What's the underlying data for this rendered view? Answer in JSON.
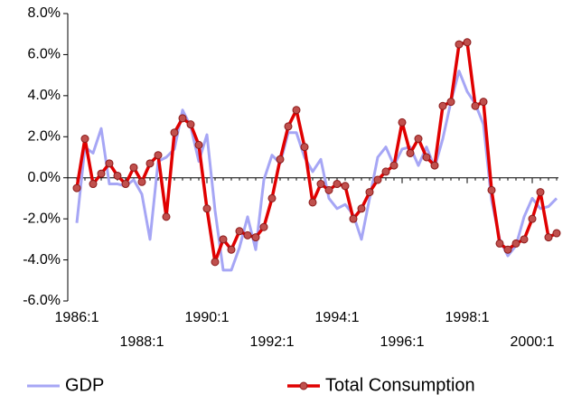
{
  "chart_data": {
    "type": "line",
    "categories": [
      "1986:1",
      null,
      null,
      null,
      null,
      null,
      null,
      null,
      "1988:1",
      null,
      null,
      null,
      null,
      null,
      null,
      null,
      "1990:1",
      null,
      null,
      null,
      null,
      null,
      null,
      null,
      "1992:1",
      null,
      null,
      null,
      null,
      null,
      null,
      null,
      "1994:1",
      null,
      null,
      null,
      null,
      null,
      null,
      null,
      "1996:1",
      null,
      null,
      null,
      null,
      null,
      null,
      null,
      "1998:1",
      null,
      null,
      null,
      null,
      null,
      null,
      null,
      "2000:1",
      null,
      null,
      null
    ],
    "series": [
      {
        "name": "GDP",
        "color": "#a6a6f5",
        "values": [
          -2.2,
          1.5,
          1.2,
          2.4,
          -0.3,
          -0.3,
          -0.4,
          -0.1,
          -0.8,
          -3.0,
          0.8,
          1.0,
          1.4,
          3.3,
          2.5,
          0.8,
          2.1,
          -1.6,
          -4.5,
          -4.5,
          -3.4,
          -1.9,
          -3.5,
          -0.1,
          1.1,
          0.7,
          2.2,
          2.2,
          1.0,
          0.3,
          0.9,
          -1.0,
          -1.5,
          -1.3,
          -1.8,
          -3.0,
          -1.0,
          1.0,
          1.5,
          0.6,
          1.4,
          1.5,
          0.6,
          1.5,
          0.5,
          1.9,
          3.7,
          5.2,
          4.2,
          3.6,
          2.6,
          -1.1,
          -3.0,
          -3.8,
          -3.3,
          -1.9,
          -1.0,
          -1.5,
          -1.4,
          -1.0
        ]
      },
      {
        "name": "Total Consumption",
        "color": "#e00000",
        "values": [
          -0.5,
          1.9,
          -0.3,
          0.2,
          0.7,
          0.1,
          -0.3,
          0.5,
          -0.2,
          0.7,
          1.1,
          -1.9,
          2.2,
          2.9,
          2.6,
          1.6,
          -1.5,
          -4.1,
          -3.0,
          -3.5,
          -2.6,
          -2.8,
          -2.9,
          -2.4,
          -1.0,
          0.9,
          2.5,
          3.3,
          1.5,
          -1.2,
          -0.3,
          -0.6,
          -0.3,
          -0.4,
          -2.0,
          -1.5,
          -0.7,
          -0.1,
          0.3,
          0.6,
          2.7,
          1.2,
          1.9,
          1.0,
          0.6,
          3.5,
          3.7,
          6.5,
          6.6,
          3.5,
          3.7,
          -0.6,
          -3.2,
          -3.5,
          -3.2,
          -3.0,
          -2.0,
          -0.7,
          -2.9,
          -2.7
        ]
      }
    ],
    "ylim": [
      -6,
      8
    ],
    "yticks": [
      {
        "value": -6,
        "label": "-6.0%"
      },
      {
        "value": -4,
        "label": "-4.0%"
      },
      {
        "value": -2,
        "label": "-2.0%"
      },
      {
        "value": 0,
        "label": "0.0%"
      },
      {
        "value": 2,
        "label": "2.0%"
      },
      {
        "value": 4,
        "label": "4.0%"
      },
      {
        "value": 6,
        "label": "6.0%"
      },
      {
        "value": 8,
        "label": "8.0%"
      }
    ],
    "grid": false,
    "legend": "bottom"
  }
}
